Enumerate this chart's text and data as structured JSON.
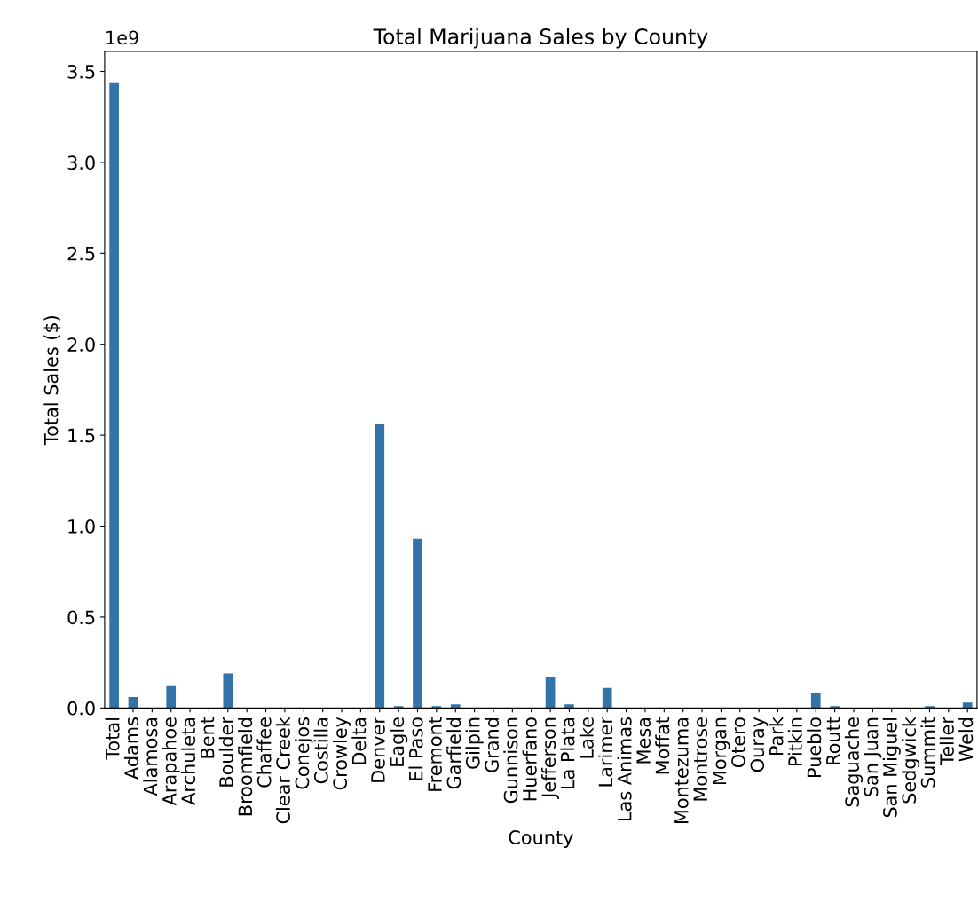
{
  "chart_data": {
    "type": "bar",
    "title": "Total Marijuana Sales by County",
    "xlabel": "County",
    "ylabel": "Total Sales ($)",
    "categories": [
      "Total",
      "Adams",
      "Alamosa",
      "Arapahoe",
      "Archuleta",
      "Bent",
      "Boulder",
      "Broomfield",
      "Chaffee",
      "Clear Creek",
      "Conejos",
      "Costilla",
      "Crowley",
      "Delta",
      "Denver",
      "Eagle",
      "El Paso",
      "Fremont",
      "Garfield",
      "Gilpin",
      "Grand",
      "Gunnison",
      "Huerfano",
      "Jefferson",
      "La Plata",
      "Lake",
      "Larimer",
      "Las Animas",
      "Mesa",
      "Moffat",
      "Montezuma",
      "Montrose",
      "Morgan",
      "Otero",
      "Ouray",
      "Park",
      "Pitkin",
      "Pueblo",
      "Routt",
      "Saguache",
      "San Juan",
      "San Miguel",
      "Sedgwick",
      "Summit",
      "Teller",
      "Weld"
    ],
    "values": [
      3.44,
      0.06,
      0,
      0.12,
      0,
      0,
      0.19,
      0,
      0,
      0,
      0,
      0,
      0,
      0,
      1.56,
      0.01,
      0.93,
      0.01,
      0.02,
      0,
      0,
      0,
      0,
      0.17,
      0.02,
      0,
      0.11,
      0,
      0,
      0,
      0,
      0,
      0,
      0,
      0,
      0,
      0,
      0.08,
      0.01,
      0,
      0,
      0,
      0,
      0.01,
      0,
      0.03
    ],
    "color": "#3274a8",
    "ylim": [
      0,
      3.61
    ],
    "yticks": [
      {
        "value": 0,
        "label": "0.0"
      },
      {
        "value": 0.5,
        "label": "0.5"
      },
      {
        "value": 1,
        "label": "1.0"
      },
      {
        "value": 1.5,
        "label": "1.5"
      },
      {
        "value": 2,
        "label": "2.0"
      },
      {
        "value": 2.5,
        "label": "2.5"
      },
      {
        "value": 3,
        "label": "3.0"
      },
      {
        "value": 3.5,
        "label": "3.5"
      }
    ],
    "annotations": [
      "1e9"
    ],
    "grid": false,
    "legend": false
  }
}
